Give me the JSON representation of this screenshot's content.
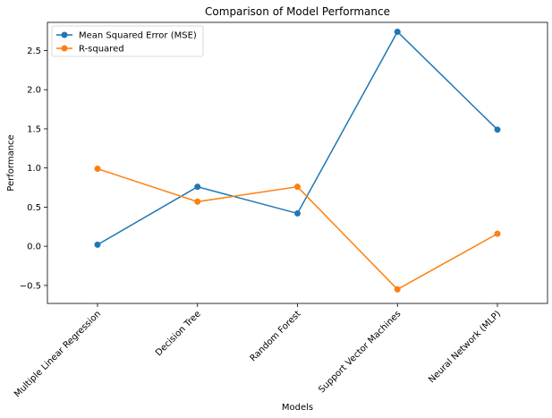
{
  "chart_data": {
    "type": "line",
    "title": "Comparison of Model Performance",
    "xlabel": "Models",
    "ylabel": "Performance",
    "categories": [
      "Multiple Linear Regression",
      "Decision Tree",
      "Random Forest",
      "Support Vector Machines",
      "Neural Network (MLP)"
    ],
    "series": [
      {
        "name": "Mean Squared Error (MSE)",
        "color": "#1f77b4",
        "values": [
          0.02,
          0.76,
          0.42,
          2.74,
          1.49
        ]
      },
      {
        "name": "R-squared",
        "color": "#ff7f0e",
        "values": [
          0.99,
          0.57,
          0.76,
          -0.55,
          0.16
        ]
      }
    ],
    "ylim": [
      -0.73,
      2.86
    ],
    "yticks": [
      -0.5,
      0.0,
      0.5,
      1.0,
      1.5,
      2.0,
      2.5
    ],
    "ytick_labels": [
      "−0.5",
      "0.0",
      "0.5",
      "1.0",
      "1.5",
      "2.0",
      "2.5"
    ],
    "grid": false,
    "legend_position": "top-left",
    "marker": "circle"
  }
}
